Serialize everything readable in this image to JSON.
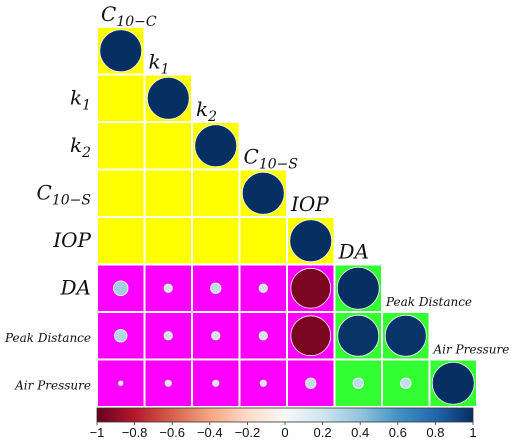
{
  "chart_data": {
    "type": "heatmap",
    "layout": "lower-triangular correlation plot with circles",
    "variables": [
      {
        "key": "C10C",
        "base": "C",
        "sub": "10−C",
        "group": "yellow"
      },
      {
        "key": "k1",
        "base": "k",
        "sub": "1",
        "group": "yellow"
      },
      {
        "key": "k2",
        "base": "k",
        "sub": "2",
        "group": "yellow"
      },
      {
        "key": "C10S",
        "base": "C",
        "sub": "10−S",
        "group": "yellow"
      },
      {
        "key": "IOP",
        "base": "IOP",
        "sub": "",
        "group": "yellow"
      },
      {
        "key": "DA",
        "base": "DA",
        "sub": "",
        "group": "green"
      },
      {
        "key": "PD",
        "base": "Peak Distance",
        "sub": "",
        "group": "green"
      },
      {
        "key": "AP",
        "base": "Air Pressure",
        "sub": "",
        "group": "green"
      }
    ],
    "values": [
      [
        1.0
      ],
      [
        null,
        1.0
      ],
      [
        null,
        null,
        1.0
      ],
      [
        null,
        null,
        null,
        1.0
      ],
      [
        null,
        null,
        null,
        null,
        1.0
      ],
      [
        0.35,
        0.2,
        0.25,
        0.2,
        -0.95,
        1.0
      ],
      [
        0.3,
        0.2,
        0.2,
        0.2,
        -0.95,
        0.98,
        0.98
      ],
      [
        0.1,
        0.15,
        0.15,
        0.15,
        0.25,
        0.25,
        0.25,
        1.0
      ]
    ],
    "colors": {
      "yellow_block": "#ffff00",
      "magenta_block": "#ff00ff",
      "green_block": "#33ff33",
      "strong_positive": "#053061",
      "strong_negative": "#67001f"
    },
    "colorbar": {
      "range": [
        -1,
        1
      ],
      "tick_labels": [
        "−1",
        "−0.8",
        "−0.6",
        "−0.4",
        "−0.2",
        "0",
        "0.2",
        "0.4",
        "0.6",
        "0.8",
        "1"
      ],
      "gradient": [
        "#67001f",
        "#b2182b",
        "#d6604d",
        "#f4a582",
        "#fddbc7",
        "#f7f7f7",
        "#d1e5f0",
        "#92c5de",
        "#4393c3",
        "#2166ac",
        "#053061"
      ]
    }
  }
}
